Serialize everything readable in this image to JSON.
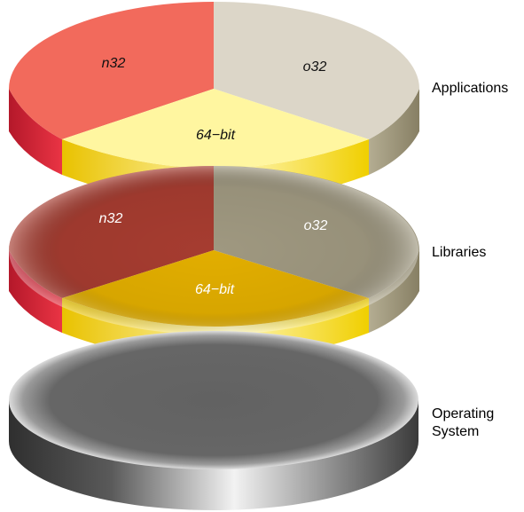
{
  "layers": [
    {
      "name": "Applications",
      "segments": [
        {
          "label": "n32",
          "top": "#f26a5c",
          "side": "#e3263a",
          "label_color": "#111111"
        },
        {
          "label": "o32",
          "top": "#dcd6c8",
          "side": "#aaa286",
          "label_color": "#111111"
        },
        {
          "label": "64−bit",
          "top": "#fff6a0",
          "side": "#f5d400",
          "label_color": "#111111"
        }
      ]
    },
    {
      "name": "Libraries",
      "segments": [
        {
          "label": "n32",
          "top": "#a63c30",
          "side": "#e3263a",
          "label_color": "#ffffff"
        },
        {
          "label": "o32",
          "top": "#9f9880",
          "side": "#aaa286",
          "label_color": "#ffffff"
        },
        {
          "label": "64−bit",
          "top": "#e2ae00",
          "side": "#f5d400",
          "label_color": "#ffffff"
        }
      ]
    },
    {
      "name": "Operating\nSystem",
      "name_lines": [
        "Operating",
        "System"
      ],
      "top": "#616161",
      "side": "#8a8a8a"
    }
  ]
}
